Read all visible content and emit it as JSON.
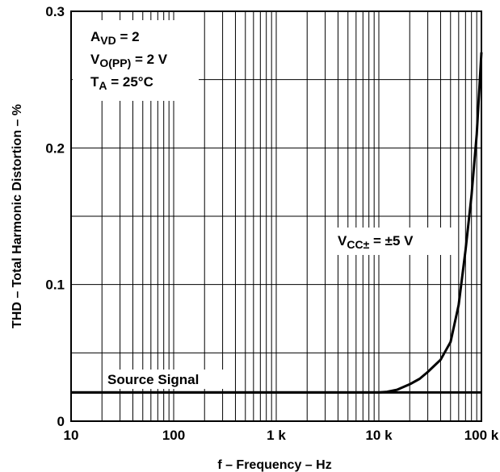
{
  "chart_data": {
    "type": "line",
    "xlabel": "f – Frequency – Hz",
    "ylabel": "THD – Total Harmonic Distortion – %",
    "x_scale": "log",
    "xlim": [
      10,
      100000
    ],
    "ylim": [
      0,
      0.3
    ],
    "x_ticks": [
      10,
      100,
      1000,
      10000,
      100000
    ],
    "x_tick_labels": [
      "10",
      "100",
      "1 k",
      "10 k",
      "100 k"
    ],
    "y_ticks": [
      0,
      0.1,
      0.2,
      0.3
    ],
    "y_tick_labels": [
      "0",
      "0.1",
      "0.2",
      "0.3"
    ],
    "grid": true,
    "conditions": {
      "avd": {
        "main": "A",
        "sub": "VD",
        "rest": " = 2"
      },
      "vo": {
        "main": "V",
        "sub": "O(PP)",
        "rest": " = 2 V"
      },
      "ta": {
        "main": "T",
        "sub": "A",
        "rest": " = 25°C"
      }
    },
    "curve_label": {
      "main": "V",
      "sub": "CC±",
      "rest": " = ±5 V"
    },
    "source_label": "Source Signal",
    "series": [
      {
        "name": "VCC± = ±5 V",
        "x": [
          10,
          100,
          1000,
          10000,
          12000,
          15000,
          20000,
          25000,
          30000,
          40000,
          50000,
          60000,
          70000,
          80000,
          90000,
          100000
        ],
        "y": [
          0.021,
          0.021,
          0.021,
          0.021,
          0.0215,
          0.023,
          0.027,
          0.031,
          0.036,
          0.045,
          0.058,
          0.085,
          0.125,
          0.165,
          0.21,
          0.27
        ]
      },
      {
        "name": "Source Signal",
        "x": [
          10,
          100000
        ],
        "y": [
          0.021,
          0.021
        ]
      }
    ]
  }
}
